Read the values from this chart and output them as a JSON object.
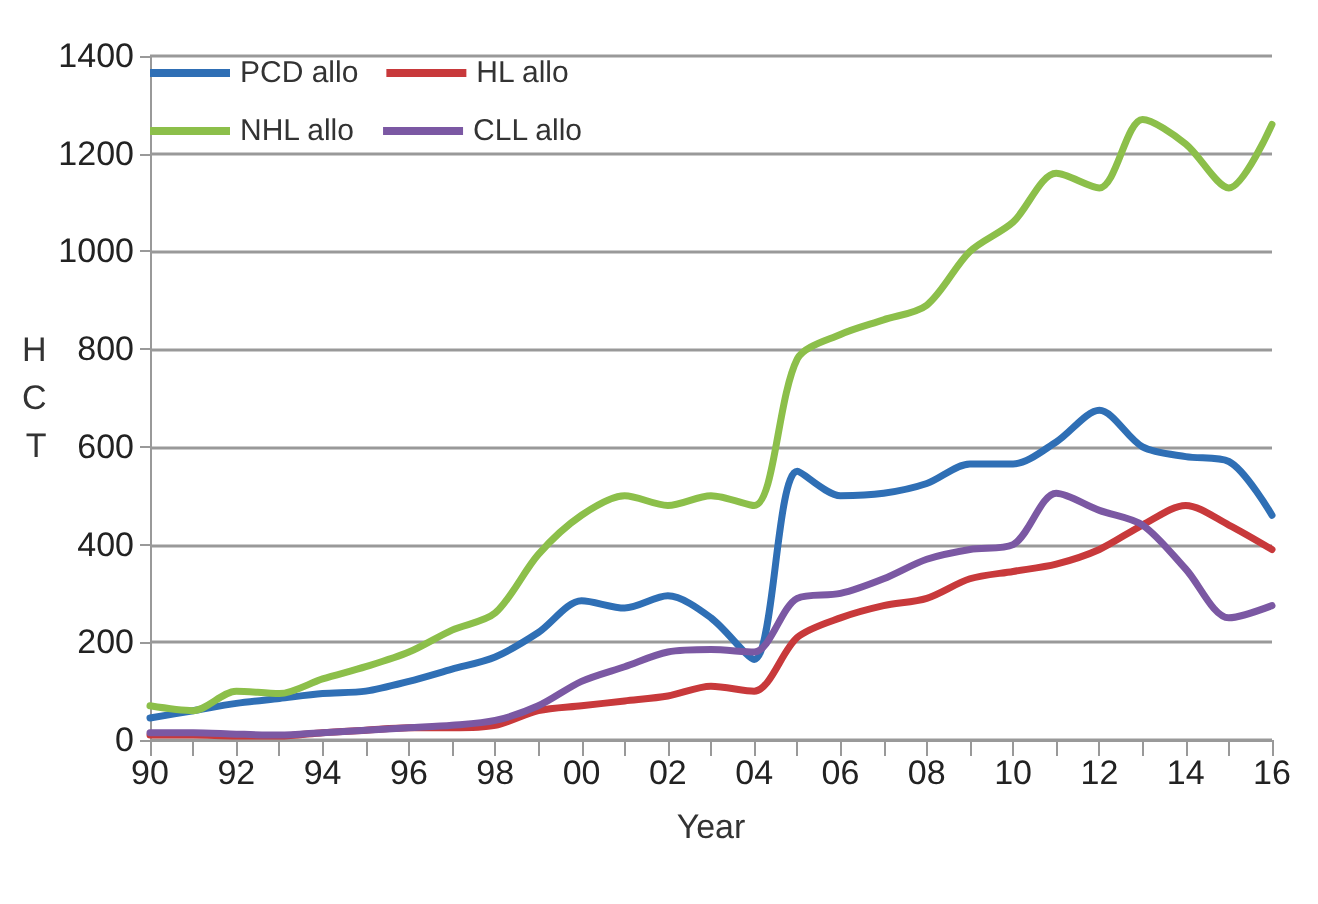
{
  "chart_data": {
    "type": "line",
    "xlabel": "Year",
    "ylabel": "HCT",
    "categories": [
      "90",
      null,
      "92",
      null,
      "94",
      null,
      "96",
      null,
      "98",
      null,
      "00",
      null,
      "02",
      null,
      "04",
      null,
      "06",
      null,
      "08",
      null,
      "10",
      null,
      "12",
      null,
      "14",
      null,
      "16"
    ],
    "series": [
      {
        "name": "PCD allo",
        "color": "#2f6fb5",
        "values": [
          45,
          60,
          75,
          85,
          95,
          100,
          120,
          145,
          170,
          220,
          285,
          270,
          295,
          250,
          165,
          550,
          500,
          505,
          525,
          565,
          565,
          610,
          675,
          600,
          580,
          570,
          460
        ]
      },
      {
        "name": "HL allo",
        "color": "#c8393b",
        "values": [
          10,
          10,
          8,
          8,
          15,
          20,
          25,
          25,
          30,
          60,
          70,
          80,
          90,
          110,
          100,
          210,
          250,
          275,
          290,
          330,
          345,
          360,
          390,
          440,
          480,
          440,
          390
        ]
      },
      {
        "name": "NHL allo",
        "color": "#8cbf4a",
        "values": [
          70,
          60,
          100,
          95,
          125,
          150,
          180,
          225,
          260,
          380,
          460,
          500,
          480,
          500,
          480,
          780,
          830,
          860,
          890,
          1000,
          1060,
          1160,
          1130,
          1270,
          1220,
          1130,
          1260
        ]
      },
      {
        "name": "CLL allo",
        "color": "#7b58a3",
        "values": [
          15,
          15,
          12,
          10,
          15,
          20,
          25,
          30,
          40,
          70,
          120,
          150,
          180,
          185,
          180,
          290,
          300,
          330,
          370,
          390,
          400,
          505,
          470,
          440,
          350,
          250,
          275
        ]
      }
    ],
    "ylim": [
      0,
      1400
    ],
    "yticks": [
      0,
      200,
      400,
      600,
      800,
      1000,
      1200,
      1400
    ],
    "grid": "y",
    "legend": "top left",
    "marker": "none",
    "line_style": "solid"
  }
}
